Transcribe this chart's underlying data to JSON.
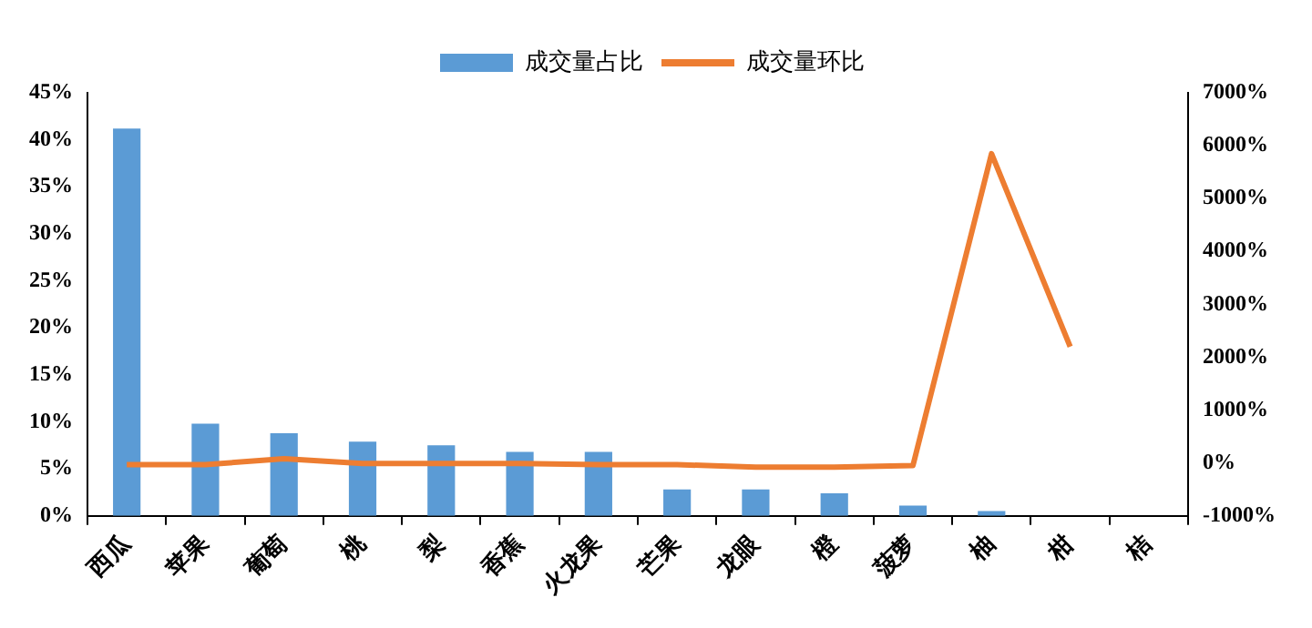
{
  "chart_data": {
    "type": "bar",
    "categories": [
      "西瓜",
      "苹果",
      "葡萄",
      "桃",
      "梨",
      "香蕉",
      "火龙果",
      "芒果",
      "龙眼",
      "橙",
      "菠萝",
      "柚",
      "柑",
      "桔"
    ],
    "series": [
      {
        "name": "成交量占比",
        "color": "#5b9bd5",
        "values": [
          41.2,
          9.8,
          8.8,
          7.9,
          7.5,
          6.8,
          6.8,
          2.8,
          2.8,
          2.4,
          1.1,
          0.5,
          0,
          0
        ]
      },
      {
        "name": "成交量环比",
        "type": "line",
        "axis": "y2",
        "color": "#ed7d31",
        "values": [
          -30,
          -30,
          80,
          -10,
          -10,
          -10,
          -30,
          -30,
          -80,
          -80,
          -50,
          5850,
          2200,
          null
        ]
      }
    ],
    "ylim": [
      0,
      45
    ],
    "yticks": [
      {
        "value": 0,
        "label": "0%"
      },
      {
        "value": 5,
        "label": "5%"
      },
      {
        "value": 10,
        "label": "10%"
      },
      {
        "value": 15,
        "label": "15%"
      },
      {
        "value": 20,
        "label": "20%"
      },
      {
        "value": 25,
        "label": "25%"
      },
      {
        "value": 30,
        "label": "30%"
      },
      {
        "value": 35,
        "label": "35%"
      },
      {
        "value": 40,
        "label": "40%"
      },
      {
        "value": 45,
        "label": "45%"
      }
    ],
    "y2lim": [
      -1000,
      7000
    ],
    "y2ticks": [
      {
        "value": -1000,
        "label": "-1000%"
      },
      {
        "value": 0,
        "label": "0%"
      },
      {
        "value": 1000,
        "label": "1000%"
      },
      {
        "value": 2000,
        "label": "2000%"
      },
      {
        "value": 3000,
        "label": "3000%"
      },
      {
        "value": 4000,
        "label": "4000%"
      },
      {
        "value": 5000,
        "label": "5000%"
      },
      {
        "value": 6000,
        "label": "6000%"
      },
      {
        "value": 7000,
        "label": "7000%"
      }
    ],
    "grid": false,
    "legend": "top",
    "marker": "none",
    "line_style": "solid"
  }
}
